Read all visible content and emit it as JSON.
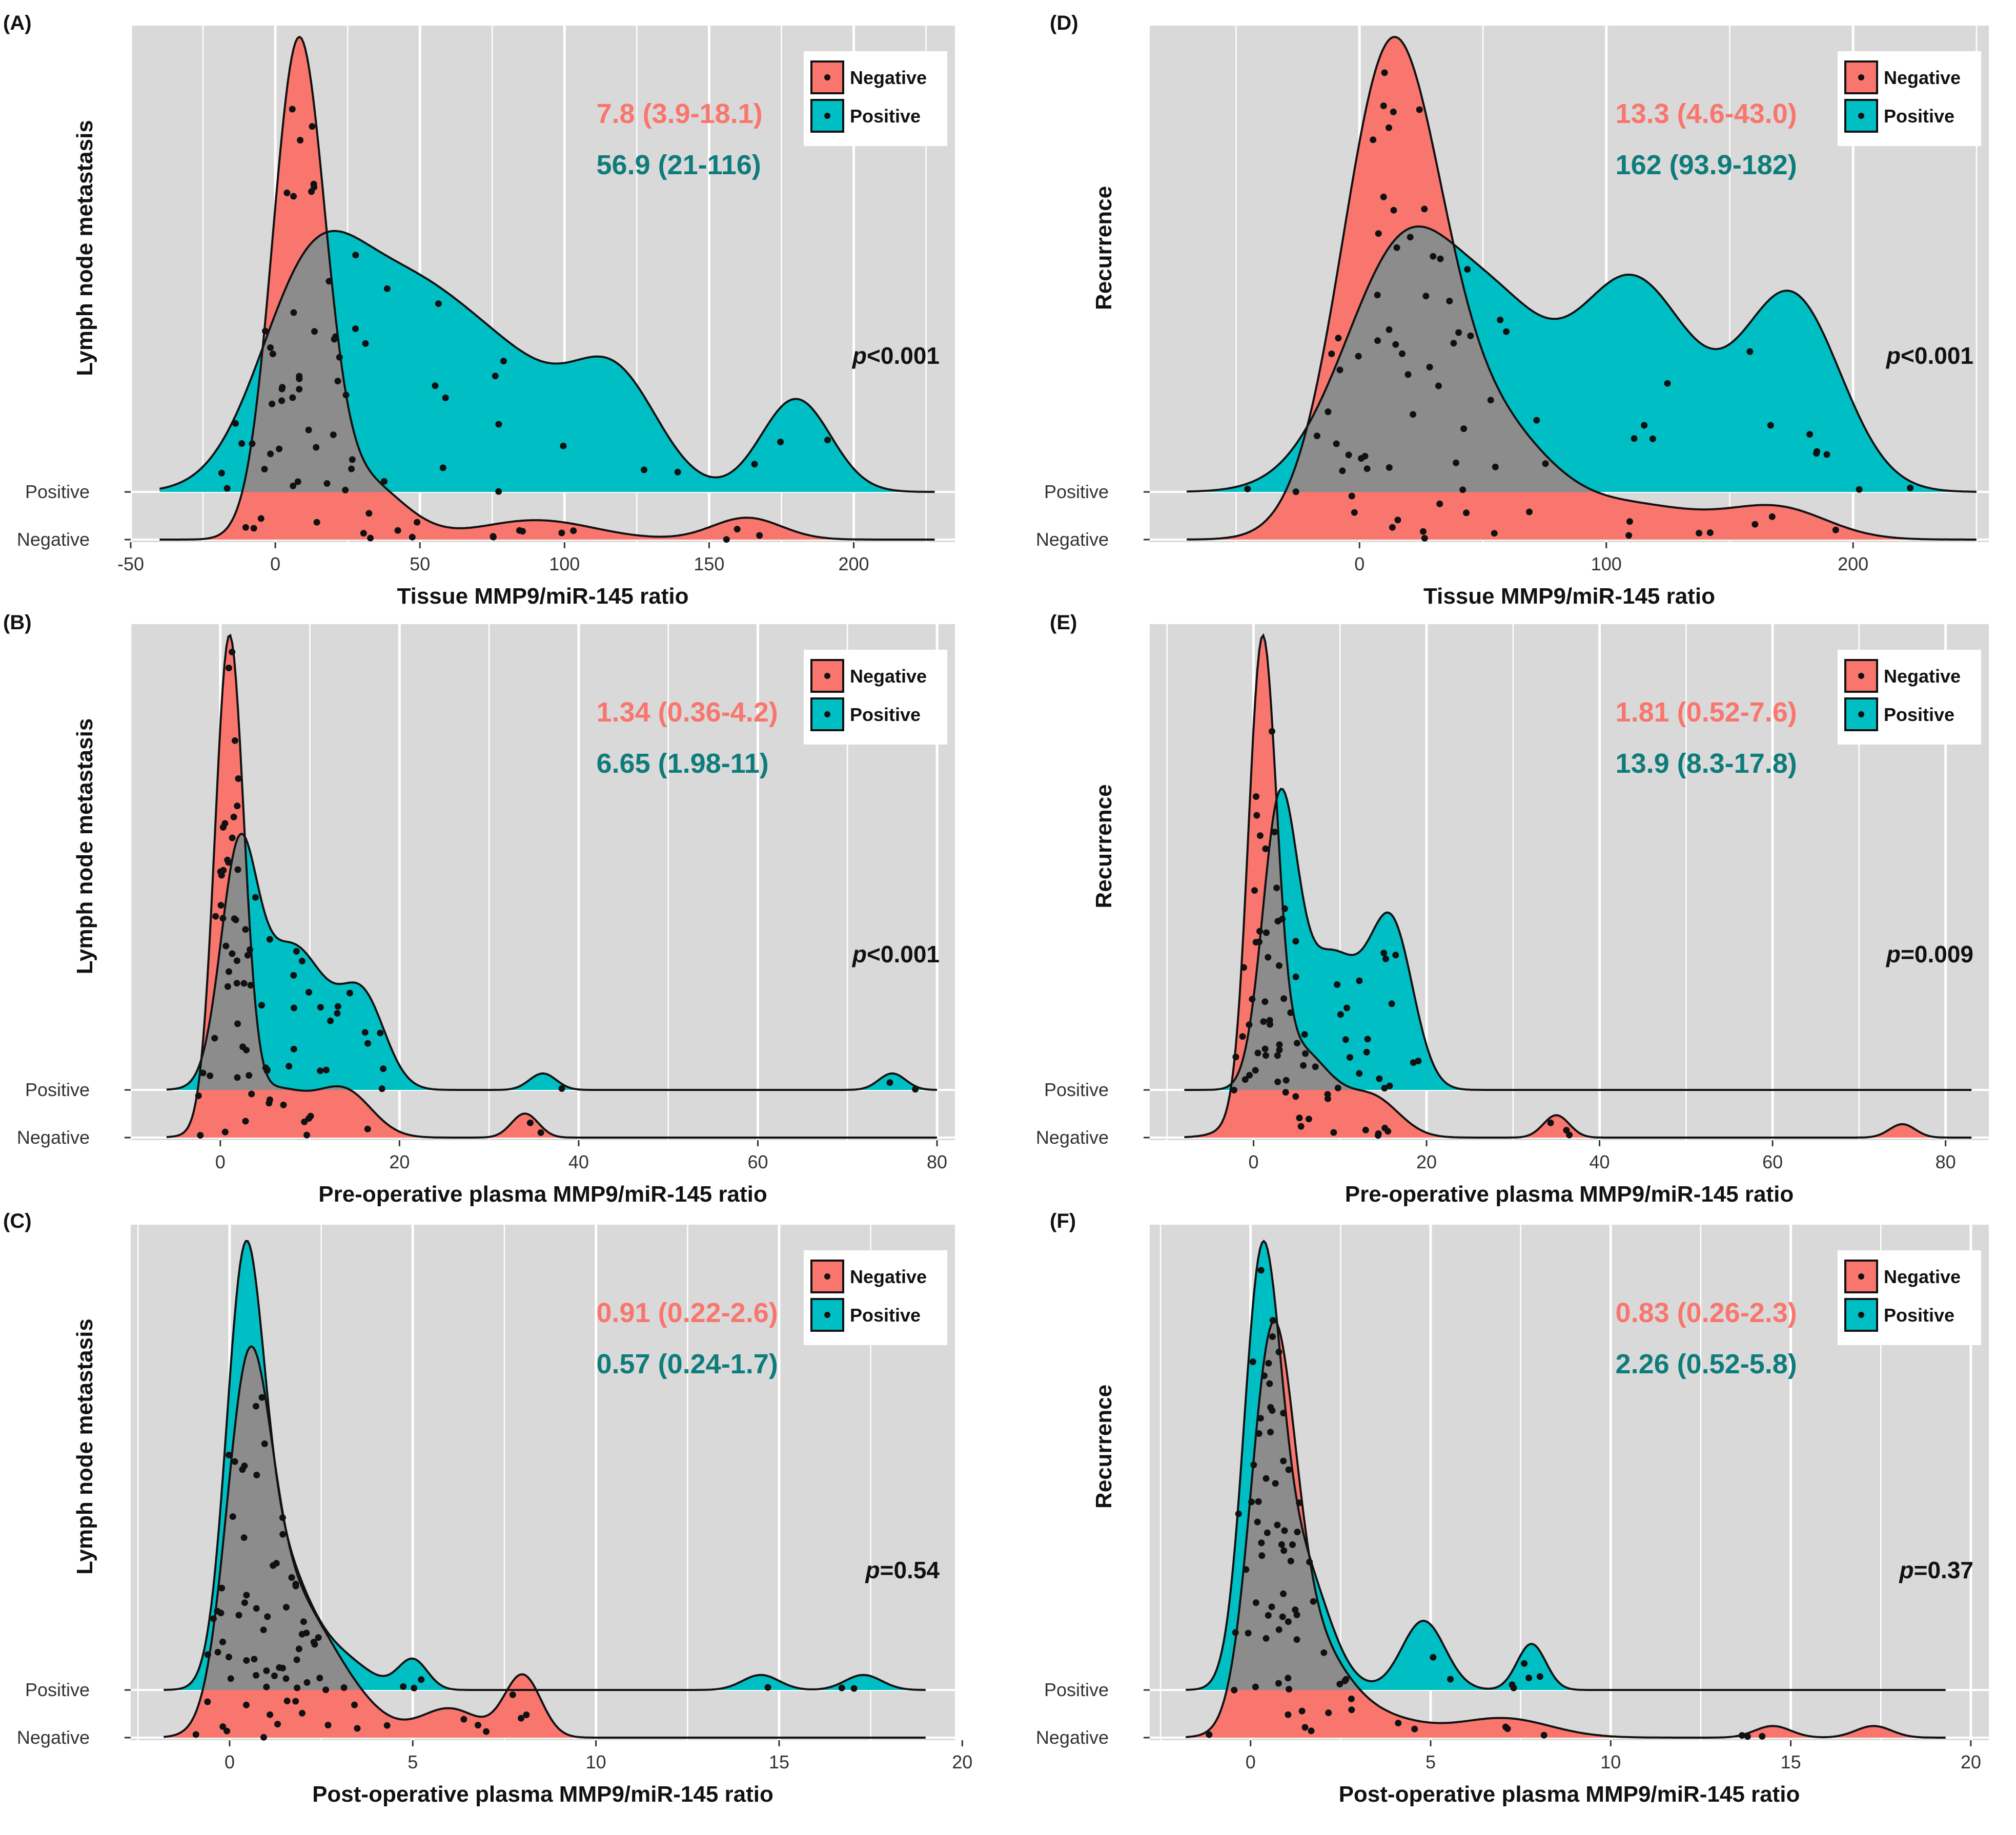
{
  "colors": {
    "negative": "#F8766D",
    "positive": "#00BFC4",
    "negative_text": "#F8766D",
    "positive_text": "#0E7C7B",
    "panel_bg": "#D9D9D9",
    "overlap": "#8C8C8C",
    "point": "#111111"
  },
  "chart_data": [
    {
      "type": "density-ridge",
      "panel": "(A)",
      "ylabel": "Lymph node metastasis",
      "xlabel": "Tissue MMP9/miR-145 ratio",
      "xlim": [
        -50,
        235
      ],
      "xticks": [
        -50,
        0,
        50,
        100,
        150,
        200
      ],
      "groups": [
        "Positive",
        "Negative"
      ],
      "legend": {
        "position": "top-right",
        "entries": [
          "Negative",
          "Positive"
        ]
      },
      "stats": {
        "negative": "7.8 (3.9-18.1)",
        "positive": "56.9 (21-116)"
      },
      "p_prefix": "p",
      "p_value": "<0.001",
      "series": [
        {
          "name": "Negative",
          "peaks": [
            [
              8,
              1.0,
              9
            ],
            [
              30,
              0.12,
              14
            ],
            [
              90,
              0.04,
              20
            ],
            [
              163,
              0.045,
              12
            ]
          ],
          "x_range": [
            -40,
            228
          ]
        },
        {
          "name": "Positive",
          "peaks": [
            [
              12,
              0.4,
              18
            ],
            [
              45,
              0.3,
              20
            ],
            [
              80,
              0.22,
              22
            ],
            [
              118,
              0.2,
              15
            ],
            [
              180,
              0.18,
              12
            ]
          ],
          "x_range": [
            -40,
            228
          ]
        }
      ]
    },
    {
      "type": "density-ridge",
      "panel": "(B)",
      "ylabel": "Lymph node metastasis",
      "xlabel": "Pre-operative plasma MMP9/miR-145 ratio",
      "xlim": [
        -10,
        82
      ],
      "xticks": [
        0,
        20,
        40,
        60,
        80
      ],
      "groups": [
        "Positive",
        "Negative"
      ],
      "legend": {
        "position": "top-right",
        "entries": [
          "Negative",
          "Positive"
        ]
      },
      "stats": {
        "negative": "1.34 (0.36-4.2)",
        "positive": "6.65 (1.98-11)"
      },
      "p_prefix": "p",
      "p_value": "<0.001",
      "series": [
        {
          "name": "Negative",
          "peaks": [
            [
              1,
              1.0,
              1.6
            ],
            [
              6,
              0.1,
              4
            ],
            [
              14,
              0.09,
              3
            ],
            [
              34,
              0.05,
              1.5
            ]
          ],
          "x_range": [
            -6,
            80
          ]
        },
        {
          "name": "Positive",
          "peaks": [
            [
              2,
              0.5,
              2
            ],
            [
              8,
              0.35,
              4
            ],
            [
              16,
              0.2,
              2.5
            ],
            [
              36,
              0.04,
              1.5
            ],
            [
              75,
              0.04,
              1.5
            ]
          ],
          "x_range": [
            -6,
            80
          ]
        }
      ]
    },
    {
      "type": "density-ridge",
      "panel": "(C)",
      "ylabel": "Lymph node metastasis",
      "xlabel": "Post-operative plasma MMP9/miR-145 ratio",
      "xlim": [
        -2.7,
        19.8
      ],
      "xticks": [
        0,
        5,
        10,
        15,
        20
      ],
      "groups": [
        "Positive",
        "Negative"
      ],
      "legend": {
        "position": "top-right",
        "entries": [
          "Negative",
          "Positive"
        ]
      },
      "stats": {
        "negative": "0.91 (0.22-2.6)",
        "positive": "0.57 (0.24-1.7)"
      },
      "p_prefix": "p",
      "p_value": "=0.54",
      "series": [
        {
          "name": "Negative",
          "peaks": [
            [
              0.5,
              0.75,
              0.6
            ],
            [
              1.5,
              0.3,
              1.0
            ],
            [
              3,
              0.1,
              1.0
            ],
            [
              6,
              0.07,
              0.8
            ],
            [
              8,
              0.15,
              0.5
            ]
          ],
          "x_range": [
            -1.8,
            19
          ]
        },
        {
          "name": "Positive",
          "peaks": [
            [
              0.4,
              1.0,
              0.5
            ],
            [
              1.3,
              0.35,
              0.8
            ],
            [
              3,
              0.08,
              0.8
            ],
            [
              5,
              0.08,
              0.4
            ],
            [
              14.5,
              0.04,
              0.5
            ],
            [
              17.3,
              0.04,
              0.5
            ]
          ],
          "x_range": [
            -1.8,
            19
          ]
        }
      ]
    },
    {
      "type": "density-ridge",
      "panel": "(D)",
      "ylabel": "Recurrence",
      "xlabel": "Tissue MMP9/miR-145 ratio",
      "xlim": [
        -85,
        255
      ],
      "xticks": [
        0,
        100,
        200
      ],
      "groups": [
        "Positive",
        "Negative"
      ],
      "legend": {
        "position": "top-right",
        "entries": [
          "Negative",
          "Positive"
        ]
      },
      "stats": {
        "negative": "13.3 (4.6-43.0)",
        "positive": "162 (93.9-182)"
      },
      "p_prefix": "p",
      "p_value": "<0.001",
      "series": [
        {
          "name": "Negative",
          "peaks": [
            [
              13,
              1.0,
              20
            ],
            [
              55,
              0.2,
              22
            ],
            [
              110,
              0.07,
              30
            ],
            [
              170,
              0.06,
              20
            ]
          ],
          "x_range": [
            -70,
            250
          ]
        },
        {
          "name": "Positive",
          "peaks": [
            [
              20,
              0.5,
              25
            ],
            [
              60,
              0.2,
              18
            ],
            [
              110,
              0.42,
              25
            ],
            [
              175,
              0.38,
              20
            ]
          ],
          "x_range": [
            -70,
            250
          ]
        }
      ]
    },
    {
      "type": "density-ridge",
      "panel": "(E)",
      "ylabel": "Recurrence",
      "xlabel": "Pre-operative plasma MMP9/miR-145 ratio",
      "xlim": [
        -12,
        85
      ],
      "xticks": [
        0,
        20,
        40,
        60,
        80
      ],
      "groups": [
        "Positive",
        "Negative"
      ],
      "legend": {
        "position": "top-right",
        "entries": [
          "Negative",
          "Positive"
        ]
      },
      "stats": {
        "negative": "1.81 (0.52-7.6)",
        "positive": "13.9 (8.3-17.8)"
      },
      "p_prefix": "p",
      "p_value": "=0.009",
      "series": [
        {
          "name": "Negative",
          "peaks": [
            [
              1,
              1.0,
              1.6
            ],
            [
              5,
              0.2,
              4
            ],
            [
              14,
              0.08,
              3
            ],
            [
              35,
              0.05,
              1.5
            ],
            [
              75,
              0.03,
              1.5
            ]
          ],
          "x_range": [
            -8,
            83
          ]
        },
        {
          "name": "Positive",
          "peaks": [
            [
              3,
              0.6,
              2
            ],
            [
              9,
              0.3,
              3.5
            ],
            [
              16,
              0.35,
              2.5
            ]
          ],
          "x_range": [
            -8,
            83
          ]
        }
      ]
    },
    {
      "type": "density-ridge",
      "panel": "(F)",
      "ylabel": "Recurrence",
      "xlabel": "Post-operative plasma MMP9/miR-145 ratio",
      "xlim": [
        -2.8,
        20.5
      ],
      "xticks": [
        0,
        5,
        10,
        15,
        20
      ],
      "groups": [
        "Positive",
        "Negative"
      ],
      "legend": {
        "position": "top-right",
        "entries": [
          "Negative",
          "Positive"
        ]
      },
      "stats": {
        "negative": "0.83 (0.26-2.3)",
        "positive": "2.26 (0.52-5.8)"
      },
      "p_prefix": "p",
      "p_value": "=0.37",
      "series": [
        {
          "name": "Negative",
          "peaks": [
            [
              0.6,
              0.9,
              0.6
            ],
            [
              1.5,
              0.25,
              1.0
            ],
            [
              3.5,
              0.05,
              1.2
            ],
            [
              7,
              0.05,
              1.3
            ],
            [
              14.5,
              0.03,
              0.5
            ],
            [
              17.3,
              0.03,
              0.5
            ]
          ],
          "x_range": [
            -1.8,
            19.3
          ]
        },
        {
          "name": "Positive",
          "peaks": [
            [
              0.3,
              1.0,
              0.5
            ],
            [
              1.3,
              0.35,
              0.8
            ],
            [
              4.8,
              0.18,
              0.6
            ],
            [
              7.8,
              0.12,
              0.4
            ]
          ],
          "x_range": [
            -1.8,
            19.3
          ]
        }
      ]
    }
  ]
}
